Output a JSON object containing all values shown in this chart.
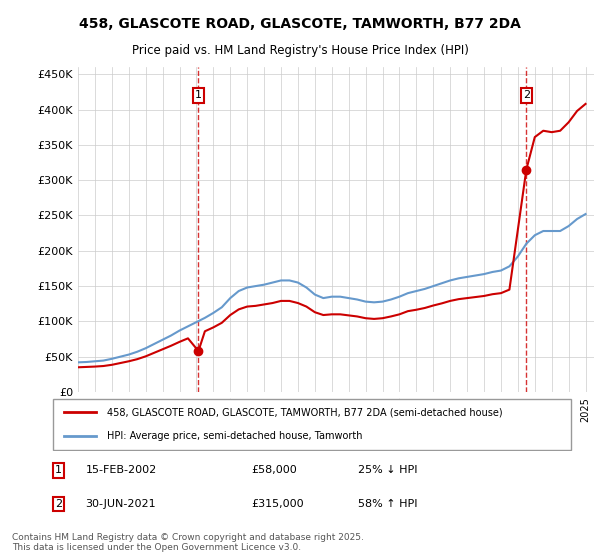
{
  "title_line1": "458, GLASCOTE ROAD, GLASCOTE, TAMWORTH, B77 2DA",
  "title_line2": "Price paid vs. HM Land Registry's House Price Index (HPI)",
  "ylabel": "",
  "ylim": [
    0,
    460000
  ],
  "yticks": [
    0,
    50000,
    100000,
    150000,
    200000,
    250000,
    300000,
    350000,
    400000,
    450000
  ],
  "ytick_labels": [
    "£0",
    "£50K",
    "£100K",
    "£150K",
    "£200K",
    "£250K",
    "£300K",
    "£350K",
    "£400K",
    "£450K"
  ],
  "xlim_start": 1995.0,
  "xlim_end": 2025.5,
  "background_color": "#ffffff",
  "grid_color": "#cccccc",
  "sale1_date": 2002.12,
  "sale1_price": 58000,
  "sale2_date": 2021.5,
  "sale2_price": 315000,
  "sale_color": "#cc0000",
  "hpi_color": "#6699cc",
  "vline_color": "#cc0000",
  "legend_label_property": "458, GLASCOTE ROAD, GLASCOTE, TAMWORTH, B77 2DA (semi-detached house)",
  "legend_label_hpi": "HPI: Average price, semi-detached house, Tamworth",
  "annotation1_label": "1",
  "annotation2_label": "2",
  "footer_text": "Contains HM Land Registry data © Crown copyright and database right 2025.\nThis data is licensed under the Open Government Licence v3.0.",
  "table_row1": "1    15-FEB-2002         £58,000         25% ↓ HPI",
  "table_row2": "2    30-JUN-2021         £315,000       58% ↑ HPI",
  "hpi_data_x": [
    1995.0,
    1995.5,
    1996.0,
    1996.5,
    1997.0,
    1997.5,
    1998.0,
    1998.5,
    1999.0,
    1999.5,
    2000.0,
    2000.5,
    2001.0,
    2001.5,
    2002.0,
    2002.5,
    2003.0,
    2003.5,
    2004.0,
    2004.5,
    2005.0,
    2005.5,
    2006.0,
    2006.5,
    2007.0,
    2007.5,
    2008.0,
    2008.5,
    2009.0,
    2009.5,
    2010.0,
    2010.5,
    2011.0,
    2011.5,
    2012.0,
    2012.5,
    2013.0,
    2013.5,
    2014.0,
    2014.5,
    2015.0,
    2015.5,
    2016.0,
    2016.5,
    2017.0,
    2017.5,
    2018.0,
    2018.5,
    2019.0,
    2019.5,
    2020.0,
    2020.5,
    2021.0,
    2021.5,
    2022.0,
    2022.5,
    2023.0,
    2023.5,
    2024.0,
    2024.5,
    2025.0
  ],
  "hpi_data_y": [
    42000,
    42500,
    43500,
    44500,
    47000,
    50000,
    53000,
    57000,
    62000,
    68000,
    74000,
    80000,
    87000,
    93000,
    99000,
    105000,
    112000,
    120000,
    133000,
    143000,
    148000,
    150000,
    152000,
    155000,
    158000,
    158000,
    155000,
    148000,
    138000,
    133000,
    135000,
    135000,
    133000,
    131000,
    128000,
    127000,
    128000,
    131000,
    135000,
    140000,
    143000,
    146000,
    150000,
    154000,
    158000,
    161000,
    163000,
    165000,
    167000,
    170000,
    172000,
    178000,
    192000,
    210000,
    222000,
    228000,
    228000,
    228000,
    235000,
    245000,
    252000
  ],
  "property_data_x": [
    1995.0,
    1995.5,
    1996.0,
    1996.5,
    1997.0,
    1997.5,
    1998.0,
    1998.5,
    1999.0,
    1999.5,
    2000.0,
    2000.5,
    2001.0,
    2001.5,
    2002.12,
    2002.5,
    2003.0,
    2003.5,
    2004.0,
    2004.5,
    2005.0,
    2005.5,
    2006.0,
    2006.5,
    2007.0,
    2007.5,
    2008.0,
    2008.5,
    2009.0,
    2009.5,
    2010.0,
    2010.5,
    2011.0,
    2011.5,
    2012.0,
    2012.5,
    2013.0,
    2013.5,
    2014.0,
    2014.5,
    2015.0,
    2015.5,
    2016.0,
    2016.5,
    2017.0,
    2017.5,
    2018.0,
    2018.5,
    2019.0,
    2019.5,
    2020.0,
    2020.5,
    2021.5,
    2022.0,
    2022.5,
    2023.0,
    2023.5,
    2024.0,
    2024.5,
    2025.0
  ],
  "property_data_y": [
    35000,
    35500,
    36000,
    36800,
    38500,
    41000,
    43500,
    46500,
    50500,
    55500,
    60500,
    65500,
    71000,
    76000,
    58000,
    86000,
    91500,
    98000,
    109000,
    117000,
    121000,
    122000,
    124000,
    126000,
    129000,
    129000,
    126000,
    121000,
    113000,
    109000,
    110000,
    110000,
    108500,
    107000,
    104500,
    103500,
    104500,
    107000,
    110000,
    114500,
    116500,
    119000,
    122500,
    125500,
    129000,
    131500,
    133000,
    134500,
    136000,
    138500,
    140000,
    145000,
    315000,
    361000,
    370000,
    368000,
    370000,
    382000,
    398000,
    408000
  ]
}
